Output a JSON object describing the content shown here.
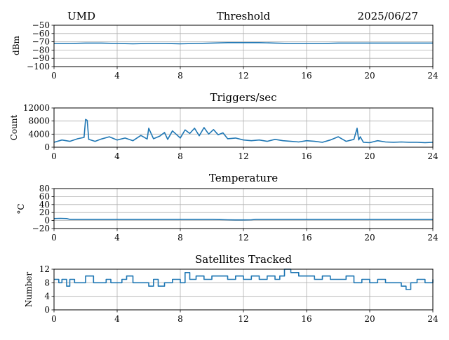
{
  "header": {
    "station": "UMD",
    "date": "2025/06/27"
  },
  "colors": {
    "line": "#1f77b4",
    "grid": "#b0b0b0",
    "axes": "#000000"
  },
  "chart_data": [
    {
      "type": "line",
      "title": "Threshold",
      "xlabel": "",
      "ylabel": "dBm",
      "xlim": [
        0,
        24
      ],
      "ylim": [
        -100,
        -50
      ],
      "xticks": [
        0,
        4,
        8,
        12,
        16,
        20,
        24
      ],
      "yticks": [
        -50,
        -60,
        -70,
        -80,
        -90,
        -100
      ],
      "ytick_labels": [
        "−50",
        "−60",
        "−70",
        "−80",
        "−90",
        "−100"
      ],
      "grid": true,
      "series": [
        {
          "x": [
            0,
            1,
            2,
            3,
            4,
            5,
            6,
            7,
            8,
            9,
            10,
            11,
            12,
            13,
            14,
            15,
            16,
            17,
            18,
            19,
            20,
            21,
            22,
            23,
            24
          ],
          "values": [
            -72,
            -72,
            -71.5,
            -71.5,
            -72,
            -72.5,
            -72,
            -72,
            -72.5,
            -72,
            -71.5,
            -71,
            -71,
            -71,
            -71.5,
            -72,
            -72,
            -72,
            -71.5,
            -71.5,
            -71.5,
            -71.5,
            -71.5,
            -71.5,
            -71.5
          ]
        }
      ]
    },
    {
      "type": "line",
      "title": "Triggers/sec",
      "xlabel": "",
      "ylabel": "Count",
      "xlim": [
        0,
        24
      ],
      "ylim": [
        0,
        12000
      ],
      "xticks": [
        0,
        4,
        8,
        12,
        16,
        20,
        24
      ],
      "yticks": [
        0,
        4000,
        8000,
        12000
      ],
      "ytick_labels": [
        "0",
        "4000",
        "8000",
        "12000"
      ],
      "grid": true,
      "series": [
        {
          "x": [
            0,
            0.5,
            1,
            1.5,
            1.9,
            2.0,
            2.1,
            2.2,
            2.6,
            3,
            3.5,
            4,
            4.5,
            5,
            5.5,
            5.9,
            6.0,
            6.3,
            6.7,
            7,
            7.2,
            7.5,
            8,
            8.3,
            8.6,
            8.9,
            9.2,
            9.5,
            9.8,
            10.1,
            10.4,
            10.7,
            11,
            11.5,
            12,
            12.5,
            13,
            13.5,
            14,
            14.5,
            15,
            15.5,
            16,
            16.5,
            17,
            17.5,
            18,
            18.5,
            19,
            19.2,
            19.3,
            19.4,
            19.6,
            20,
            20.5,
            21,
            21.5,
            22,
            22.5,
            23,
            23.5,
            24
          ],
          "values": [
            1500,
            2200,
            1800,
            2600,
            3000,
            8500,
            8200,
            2400,
            1800,
            2500,
            3200,
            2200,
            2800,
            2000,
            3600,
            2500,
            5800,
            2600,
            3400,
            4500,
            2400,
            5000,
            2800,
            5300,
            4200,
            5800,
            3500,
            6000,
            4000,
            5400,
            3800,
            4400,
            2600,
            2800,
            2200,
            2000,
            2200,
            1800,
            2400,
            2000,
            1800,
            1600,
            2000,
            1800,
            1500,
            2200,
            3200,
            1800,
            2400,
            5800,
            2200,
            3200,
            1500,
            1400,
            2000,
            1600,
            1500,
            1600,
            1500,
            1500,
            1400,
            1500
          ]
        }
      ]
    },
    {
      "type": "line",
      "title": "Temperature",
      "xlabel": "",
      "ylabel": "°C",
      "xlim": [
        0,
        24
      ],
      "ylim": [
        -20,
        80
      ],
      "xticks": [
        0,
        4,
        8,
        12,
        16,
        20,
        24
      ],
      "yticks": [
        -20,
        0,
        20,
        40,
        60,
        80
      ],
      "ytick_labels": [
        "−20",
        "0",
        "20",
        "40",
        "60",
        "80"
      ],
      "grid": true,
      "series": [
        {
          "x": [
            0,
            0.4,
            0.8,
            1.0,
            2,
            4,
            6,
            8,
            10,
            10.5,
            11,
            11.5,
            12,
            12.5,
            12.8,
            13,
            14,
            16,
            18,
            20,
            22,
            24
          ],
          "values": [
            5,
            5.5,
            5,
            3,
            3,
            3,
            3,
            3,
            3,
            2.5,
            2,
            1.5,
            1.5,
            2,
            3,
            3,
            3,
            3,
            3,
            3,
            3,
            3
          ]
        }
      ]
    },
    {
      "type": "line",
      "title": "Satellites Tracked",
      "xlabel": "",
      "ylabel": "Number",
      "xlim": [
        0,
        24
      ],
      "ylim": [
        0,
        12
      ],
      "xticks": [
        0,
        4,
        8,
        12,
        16,
        20,
        24
      ],
      "yticks": [
        0,
        4,
        8,
        12
      ],
      "ytick_labels": [
        "0",
        "4",
        "8",
        "12"
      ],
      "grid": true,
      "series": [
        {
          "step": true,
          "x": [
            0,
            0.3,
            0.5,
            0.8,
            1.0,
            1.3,
            1.6,
            2.0,
            2.5,
            3.0,
            3.3,
            3.6,
            4.0,
            4.3,
            4.6,
            5.0,
            5.5,
            6.0,
            6.3,
            6.6,
            7.0,
            7.5,
            8.0,
            8.3,
            8.6,
            9.0,
            9.5,
            10.0,
            10.5,
            11.0,
            11.5,
            12.0,
            12.5,
            13.0,
            13.5,
            14.0,
            14.3,
            14.6,
            15.0,
            15.5,
            16.0,
            16.5,
            17.0,
            17.5,
            18.0,
            18.5,
            19.0,
            19.5,
            20.0,
            20.5,
            21.0,
            21.5,
            22.0,
            22.3,
            22.6,
            23.0,
            23.5,
            24.0
          ],
          "values": [
            9,
            8,
            9,
            7,
            9,
            8,
            8,
            10,
            8,
            8,
            9,
            8,
            8,
            9,
            10,
            8,
            8,
            7,
            9,
            7,
            8,
            9,
            8,
            11,
            9,
            10,
            9,
            10,
            10,
            9,
            10,
            9,
            10,
            9,
            10,
            9,
            10,
            12,
            11,
            10,
            10,
            9,
            10,
            9,
            9,
            10,
            8,
            9,
            8,
            9,
            8,
            8,
            7,
            6,
            8,
            9,
            8,
            9
          ]
        }
      ]
    }
  ]
}
